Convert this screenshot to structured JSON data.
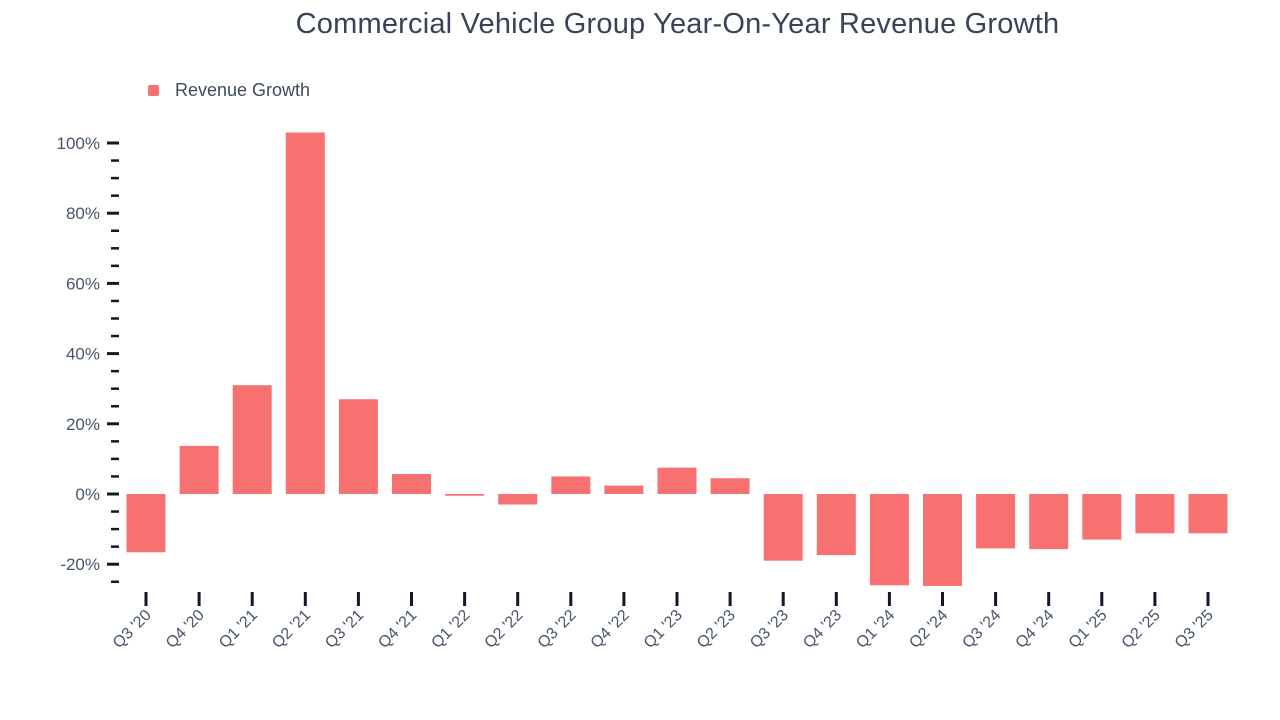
{
  "title": "Commercial Vehicle Group Year-On-Year Revenue Growth",
  "legend": {
    "label": "Revenue Growth",
    "swatch_color": "#f87171"
  },
  "chart_data": {
    "type": "bar",
    "title": "Commercial Vehicle Group Year-On-Year Revenue Growth",
    "xlabel": "",
    "ylabel": "",
    "categories": [
      "Q3 '20",
      "Q4 '20",
      "Q1 '21",
      "Q2 '21",
      "Q3 '21",
      "Q4 '21",
      "Q1 '22",
      "Q2 '22",
      "Q3 '22",
      "Q4 '22",
      "Q1 '23",
      "Q2 '23",
      "Q3 '23",
      "Q4 '23",
      "Q1 '24",
      "Q2 '24",
      "Q3 '24",
      "Q4 '24",
      "Q1 '25",
      "Q2 '25",
      "Q3 '25"
    ],
    "series": [
      {
        "name": "Revenue Growth",
        "color": "#f87171",
        "values": [
          -16.6,
          13.7,
          31,
          103,
          27,
          5.7,
          -0.5,
          -3,
          5,
          2.4,
          7.5,
          4.5,
          -19,
          -17.4,
          -26,
          -26.2,
          -15.5,
          -15.7,
          -13,
          -11.2,
          -11.2
        ]
      }
    ],
    "y_axis": {
      "unit": "%",
      "major_ticks": [
        100,
        80,
        60,
        40,
        20,
        0,
        -20
      ],
      "major_tick_labels": [
        "100%",
        "80%",
        "60%",
        "40%",
        "20%",
        "0%",
        "-20%"
      ],
      "minor_tick_step": 5,
      "ylim": [
        -27.5,
        104
      ]
    },
    "grid": false,
    "legend_position": "top-left"
  },
  "colors": {
    "bar": "#f87171",
    "title_text": "#394357",
    "axis_text": "#475569",
    "tick": "#111827",
    "background": "#ffffff"
  }
}
